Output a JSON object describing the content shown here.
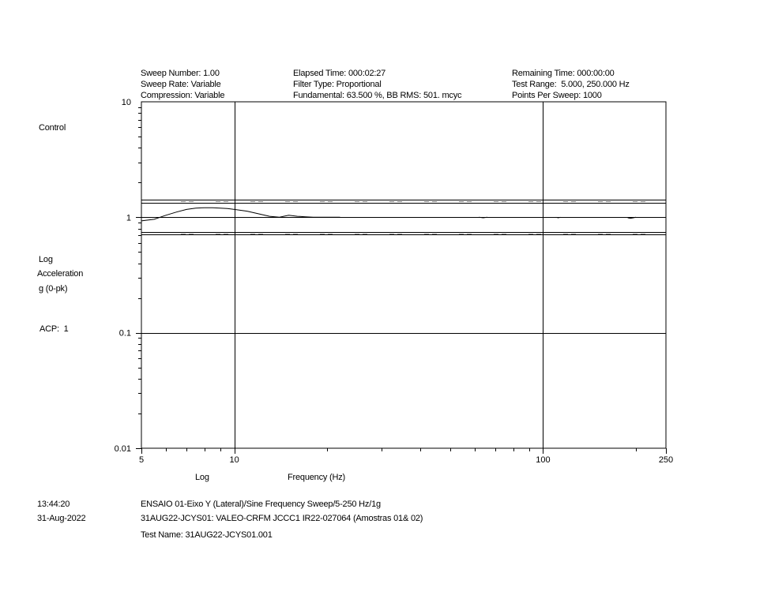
{
  "header": {
    "sweep_number": "Sweep Number: 1.00",
    "sweep_rate": "Sweep Rate: Variable",
    "compression": "Compression: Variable",
    "elapsed_time": "Elapsed Time: 000:02:27",
    "filter_type": "Filter Type: Proportional",
    "fundamental": "Fundamental: 63.500 %, BB RMS: 501. mcyc",
    "remaining_time": "Remaining Time: 000:00:00",
    "test_range": "Test Range:  5.000, 250.000 Hz",
    "points_per_sweep": "Points Per Sweep: 1000"
  },
  "side": {
    "control": "Control",
    "log": "Log",
    "acceleration": "Acceleration",
    "units": "g (0-pk)",
    "acp": "ACP:  1"
  },
  "footer": {
    "time": "13:44:20",
    "date": "31-Aug-2022",
    "line1": "ENSAIO 01-Eixo Y (Lateral)/Sine Frequency Sweep/5-250 Hz/1g",
    "line2": "31AUG22-JCYS01: VALEO-CRFM JCCC1 IR22-027064 (Amostras 01& 02)",
    "test_name": "Test Name: 31AUG22-JCYS01.001"
  },
  "chart_data": {
    "type": "line",
    "x_scale": "log",
    "y_scale": "log",
    "xlim": [
      5,
      250
    ],
    "ylim": [
      0.01,
      10
    ],
    "x_ticks": [
      {
        "value": 5,
        "label": "5"
      },
      {
        "value": 10,
        "label": "10"
      },
      {
        "value": 100,
        "label": "100"
      },
      {
        "value": 250,
        "label": "250"
      }
    ],
    "y_ticks": [
      {
        "value": 10,
        "label": "10"
      },
      {
        "value": 1,
        "label": "1"
      },
      {
        "value": 0.1,
        "label": "0.1"
      },
      {
        "value": 0.01,
        "label": "0.01"
      }
    ],
    "xlabel_scale": "Log",
    "xlabel": "Frequency (Hz)",
    "grid": "decades",
    "reference_level": 1.0,
    "abort_limits": [
      1.41,
      0.71
    ],
    "alarm_limits": [
      1.33,
      0.75
    ],
    "series": [
      {
        "x": [
          5,
          5.5,
          6,
          6.5,
          7,
          7.5,
          8,
          8.5,
          9,
          9.5,
          10,
          11,
          12,
          13,
          14,
          15,
          16,
          17,
          18,
          20,
          22
        ],
        "y": [
          0.93,
          0.96,
          1.04,
          1.11,
          1.17,
          1.2,
          1.21,
          1.21,
          1.2,
          1.19,
          1.17,
          1.13,
          1.07,
          1.02,
          1.0,
          1.04,
          1.02,
          1.01,
          1.0,
          1.0,
          1.0
        ]
      },
      {
        "x": [
          62,
          64,
          66
        ],
        "y": [
          1.0,
          0.99,
          1.0
        ]
      },
      {
        "x": [
          110,
          112,
          114
        ],
        "y": [
          1.0,
          0.99,
          1.0
        ]
      },
      {
        "x": [
          188,
          192,
          196,
          200
        ],
        "y": [
          0.99,
          0.98,
          0.99,
          1.0
        ]
      }
    ]
  }
}
